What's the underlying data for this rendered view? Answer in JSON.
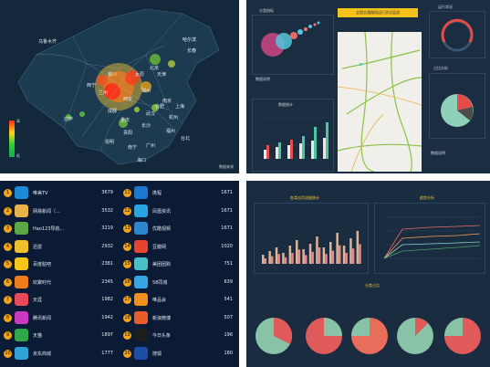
{
  "map_panel": {
    "cities": [
      "哈尔滨",
      "长春",
      "乌鲁木齐",
      "北京",
      "天津",
      "银川",
      "西宁",
      "太原",
      "兰州",
      "郑州",
      "西安",
      "南京",
      "合肥",
      "上海",
      "武汉",
      "拉萨",
      "成都",
      "重庆",
      "长沙",
      "杭州",
      "贵阳",
      "昆明",
      "福州",
      "台北",
      "南宁",
      "广州",
      "海口"
    ],
    "legend": [
      "高",
      "低"
    ],
    "footer": "数据来源"
  },
  "dashboard_panel": {
    "title": "全国交通路网运行状况监测",
    "scatter_title": "分类指标",
    "gauge_title": "运行状况",
    "pie_title": "占比分析",
    "bar_title": "数据统计",
    "footer_note": "数据说明"
  },
  "ranking": {
    "left": [
      {
        "rank": "1",
        "name": "唯美TV",
        "value": "3679",
        "color": "#1e8ad6"
      },
      {
        "rank": "2",
        "name": "网易新闻（...",
        "value": "3532",
        "color": "#e8b44a"
      },
      {
        "rank": "3",
        "name": "Hao123导航...",
        "value": "3219",
        "color": "#5aa845"
      },
      {
        "rank": "4",
        "name": "迅雷",
        "value": "2932",
        "color": "#f0c02c"
      },
      {
        "rank": "5",
        "name": "百度贴吧",
        "value": "2381",
        "color": "#f5c518"
      },
      {
        "rank": "6",
        "name": "欢聚时代",
        "value": "2345",
        "color": "#f07d1d"
      },
      {
        "rank": "7",
        "name": "天涯",
        "value": "1982",
        "color": "#e64a5b"
      },
      {
        "rank": "8",
        "name": "腾讯新闻",
        "value": "1942",
        "color": "#c93ac1"
      },
      {
        "rank": "9",
        "name": "天猫",
        "value": "1897",
        "color": "#2ea84a"
      },
      {
        "rank": "10",
        "name": "京东商城",
        "value": "1777",
        "color": "#2fa3d6"
      }
    ],
    "right": [
      {
        "rank": "11",
        "name": "携程",
        "value": "1671",
        "color": "#1a78d2"
      },
      {
        "rank": "12",
        "name": "凤凰资讯",
        "value": "1671",
        "color": "#27a4e2"
      },
      {
        "rank": "13",
        "name": "优酷视频",
        "value": "1671",
        "color": "#2b86d0"
      },
      {
        "rank": "14",
        "name": "豆瓣网",
        "value": "1020",
        "color": "#e7432e"
      },
      {
        "rank": "15",
        "name": "美团团购",
        "value": "751",
        "color": "#48c0c8"
      },
      {
        "rank": "16",
        "name": "58同城",
        "value": "639",
        "color": "#34a6e6"
      },
      {
        "rank": "17",
        "name": "唯品会",
        "value": "541",
        "color": "#f28e1c"
      },
      {
        "rank": "18",
        "name": "新浪微博",
        "value": "507",
        "color": "#e95c2c"
      },
      {
        "rank": "19",
        "name": "今日头条",
        "value": "196",
        "color": "#1e1e1e"
      },
      {
        "rank": "20",
        "name": "搜狐",
        "value": "180",
        "color": "#1d4ea6"
      }
    ]
  },
  "analysis_panel": {
    "bar_title": "各类应用流量统计",
    "line_title": "趋势分析",
    "pie_title": "分类占比"
  }
}
